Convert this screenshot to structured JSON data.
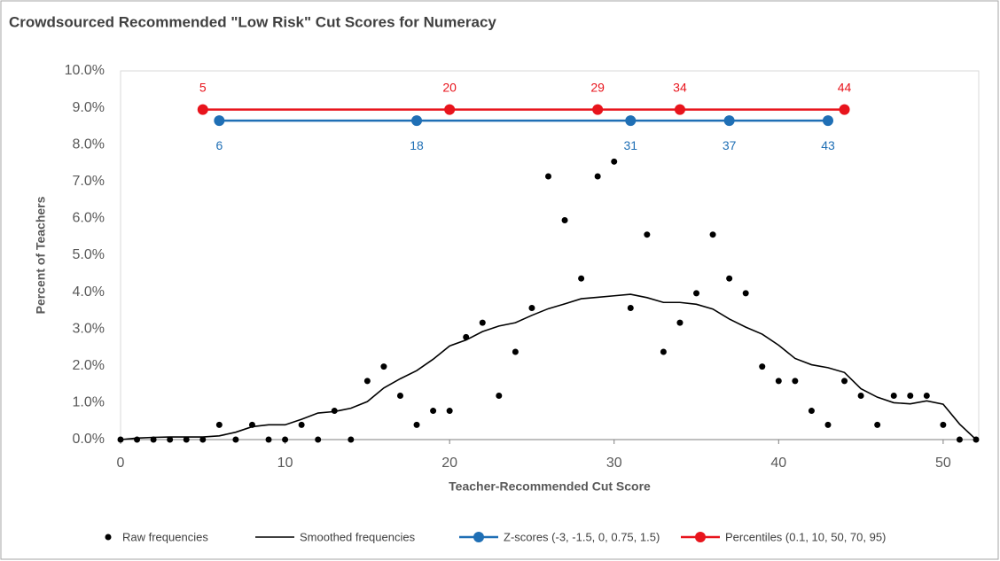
{
  "chart_data": {
    "type": "scatter",
    "title": "Crowdsourced  Recommended \"Low Risk\" Cut Scores for Numeracy",
    "x_label": "Teacher-Recommended Cut Score",
    "y_label": "Percent of Teachers",
    "xlim": [
      0,
      52
    ],
    "xticks": [
      0,
      10,
      20,
      30,
      40,
      50
    ],
    "ylim": [
      0,
      10
    ],
    "yticks": [
      {
        "value": 0,
        "label": "0.0%"
      },
      {
        "value": 1,
        "label": "1.0%"
      },
      {
        "value": 2,
        "label": "2.0%"
      },
      {
        "value": 3,
        "label": "3.0%"
      },
      {
        "value": 4,
        "label": "4.0%"
      },
      {
        "value": 5,
        "label": "5.0%"
      },
      {
        "value": 6,
        "label": "6.0%"
      },
      {
        "value": 7,
        "label": "7.0%"
      },
      {
        "value": 8,
        "label": "8.0%"
      },
      {
        "value": 9,
        "label": "9.0%"
      },
      {
        "value": 10,
        "label": "10.0%"
      }
    ],
    "grid": false,
    "legend_position": "bottom",
    "series": [
      {
        "name": "Raw frequencies",
        "type": "scatter",
        "color": "#000000",
        "x": [
          0,
          1,
          2,
          3,
          4,
          5,
          6,
          7,
          8,
          9,
          10,
          11,
          12,
          13,
          14,
          15,
          16,
          17,
          18,
          19,
          20,
          21,
          22,
          23,
          24,
          25,
          26,
          27,
          28,
          29,
          30,
          31,
          32,
          33,
          34,
          35,
          36,
          37,
          38,
          39,
          40,
          41,
          42,
          43,
          44,
          45,
          46,
          47,
          48,
          49,
          50,
          51,
          52
        ],
        "values": [
          0,
          0,
          0,
          0,
          0,
          0,
          0.4,
          0,
          0.4,
          0,
          0,
          0.4,
          0,
          0.78,
          0,
          1.59,
          1.98,
          1.19,
          0.4,
          0.78,
          0.78,
          2.78,
          3.17,
          1.19,
          2.38,
          3.57,
          7.14,
          5.95,
          4.37,
          7.14,
          7.54,
          3.57,
          5.56,
          2.38,
          3.17,
          3.97,
          5.56,
          4.37,
          3.97,
          1.98,
          1.59,
          1.59,
          0.78,
          0.4,
          1.59,
          1.19,
          0.4,
          1.19,
          1.19,
          1.19,
          0.4,
          0,
          0
        ]
      },
      {
        "name": "Smoothed frequencies",
        "type": "line",
        "color": "#000000",
        "x": [
          0,
          1,
          2,
          3,
          4,
          5,
          6,
          7,
          8,
          9,
          10,
          11,
          12,
          13,
          14,
          15,
          16,
          17,
          18,
          19,
          20,
          21,
          22,
          23,
          24,
          25,
          26,
          27,
          28,
          29,
          30,
          31,
          32,
          33,
          34,
          35,
          36,
          37,
          38,
          39,
          40,
          41,
          42,
          43,
          44,
          45,
          46,
          47,
          48,
          49,
          50,
          51,
          52
        ],
        "values": [
          0,
          0.04,
          0.06,
          0.07,
          0.07,
          0.07,
          0.1,
          0.2,
          0.35,
          0.4,
          0.4,
          0.55,
          0.72,
          0.76,
          0.85,
          1.03,
          1.4,
          1.65,
          1.87,
          2.18,
          2.54,
          2.7,
          2.93,
          3.08,
          3.17,
          3.37,
          3.55,
          3.68,
          3.82,
          3.86,
          3.9,
          3.94,
          3.85,
          3.72,
          3.72,
          3.67,
          3.54,
          3.27,
          3.05,
          2.86,
          2.56,
          2.2,
          2.03,
          1.95,
          1.82,
          1.38,
          1.15,
          1.0,
          0.97,
          1.05,
          0.96,
          0.42,
          0
        ]
      },
      {
        "name": "Z-scores (-3, -1.5, 0, 0.75, 1.5)",
        "type": "line",
        "markers": true,
        "color": "#1f6fb5",
        "label_position": "below",
        "x": [
          6,
          18,
          31,
          37,
          43
        ],
        "values": [
          8.65,
          8.65,
          8.65,
          8.65,
          8.65
        ]
      },
      {
        "name": "Percentiles (0.1, 10, 50, 70, 95)",
        "type": "line",
        "markers": true,
        "color": "#e8141c",
        "label_position": "above",
        "x": [
          5,
          20,
          29,
          34,
          44
        ],
        "values": [
          8.95,
          8.95,
          8.95,
          8.95,
          8.95
        ]
      }
    ]
  }
}
